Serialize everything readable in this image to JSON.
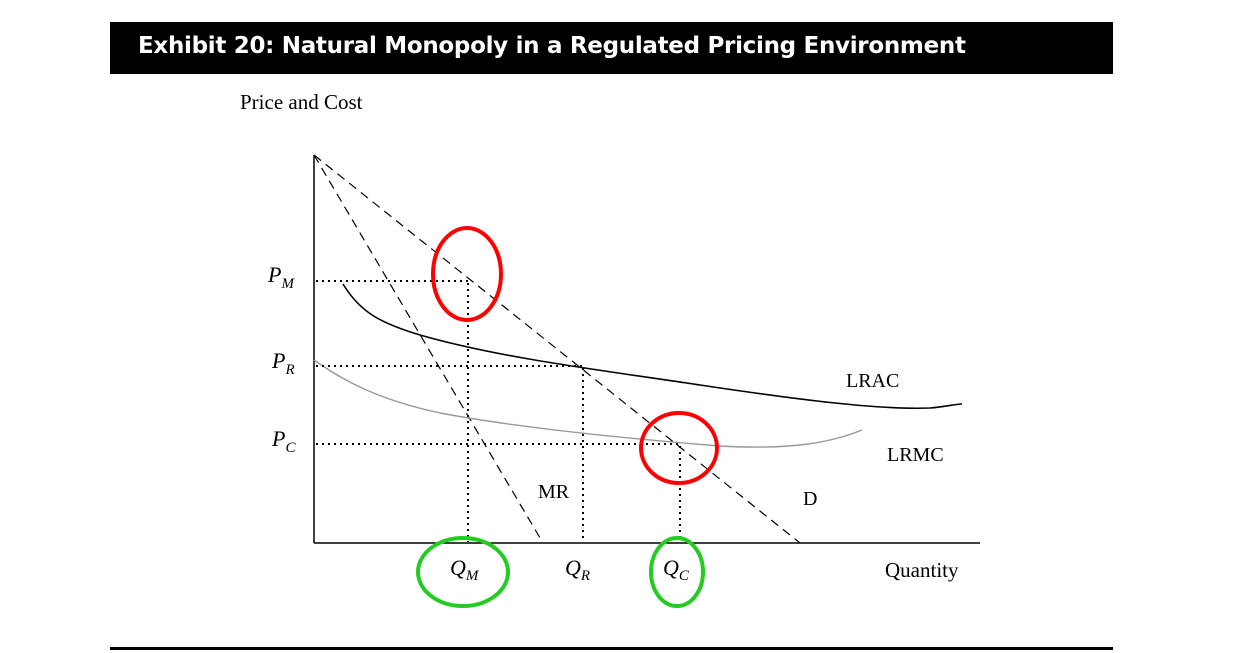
{
  "exhibit": {
    "title": "Exhibit 20: Natural Monopoly in a Regulated Pricing Environment"
  },
  "axes": {
    "y_label": "Price and Cost",
    "x_label": "Quantity"
  },
  "price_levels": [
    {
      "id": "pm",
      "main": "P",
      "sub": "M"
    },
    {
      "id": "pr",
      "main": "P",
      "sub": "R"
    },
    {
      "id": "pc",
      "main": "P",
      "sub": "C"
    }
  ],
  "quantity_levels": [
    {
      "id": "qm",
      "main": "Q",
      "sub": "M"
    },
    {
      "id": "qr",
      "main": "Q",
      "sub": "R"
    },
    {
      "id": "qc",
      "main": "Q",
      "sub": "C"
    }
  ],
  "curves": {
    "lrac": "LRAC",
    "lrmc": "LRMC",
    "mr": "MR",
    "demand": "D"
  },
  "highlights": {
    "red_color": "#ff0000",
    "green_color": "#22cc22"
  }
}
